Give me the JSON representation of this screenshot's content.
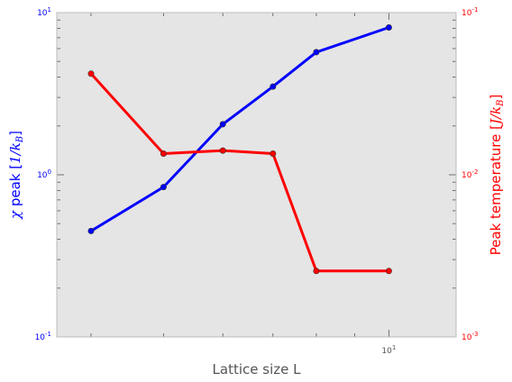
{
  "chart_data": {
    "type": "line",
    "title": "",
    "xlabel": "Lattice size L",
    "ylabel_left": "χ peak [1/k_B]",
    "ylabel_right": "Peak temperature [J/k_B]",
    "xscale": "log",
    "yscale_left": "log",
    "yscale_right": "log",
    "xlim": [
      3.6,
      12.3
    ],
    "ylim_left": [
      0.1,
      10
    ],
    "ylim_right": [
      0.001,
      0.1
    ],
    "x_tick_labels": [
      "10^1"
    ],
    "y_left_tick_labels": [
      "10^-1",
      "10^0",
      "10^1"
    ],
    "y_right_tick_labels": [
      "10^-3",
      "10^-2",
      "10^-1"
    ],
    "grid": false,
    "background": "#e5e5e5",
    "series": [
      {
        "axis": "left",
        "color": "#0000ff",
        "x": [
          4,
          5,
          6,
          7,
          8,
          10
        ],
        "values": [
          0.45,
          0.84,
          2.05,
          3.5,
          5.7,
          8.1
        ]
      },
      {
        "axis": "right",
        "color": "#ff0000",
        "x": [
          4,
          5,
          6,
          7,
          8,
          10
        ],
        "values": [
          0.042,
          0.0135,
          0.0141,
          0.0135,
          0.00255,
          0.00255
        ]
      }
    ]
  }
}
